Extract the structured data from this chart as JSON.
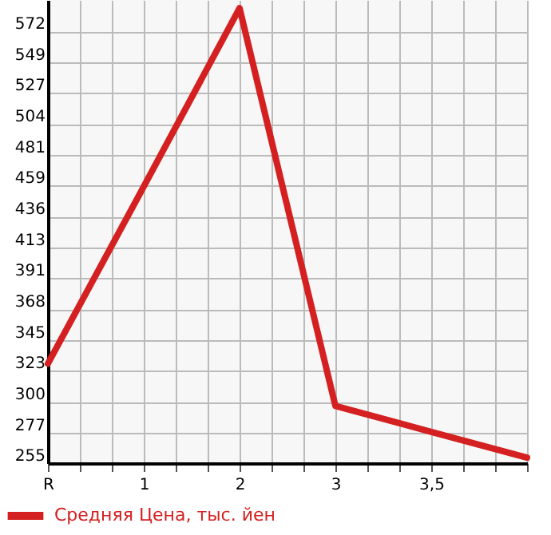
{
  "chart_data": {
    "type": "line",
    "categories": [
      "R",
      "1",
      "2",
      "3",
      "3,5",
      null
    ],
    "series": [
      {
        "name": "Средняя Цена, тыс. йен",
        "color": "#d42020",
        "values": [
          328,
          458,
          589,
          297,
          278,
          259
        ]
      }
    ],
    "ylim": [
      255,
      595
    ],
    "yticks": [
      255,
      277,
      300,
      323,
      345,
      368,
      391,
      413,
      436,
      459,
      481,
      504,
      527,
      549,
      572
    ],
    "grid": true,
    "legend": "bottom",
    "marker": "none",
    "line_style": "solid"
  }
}
